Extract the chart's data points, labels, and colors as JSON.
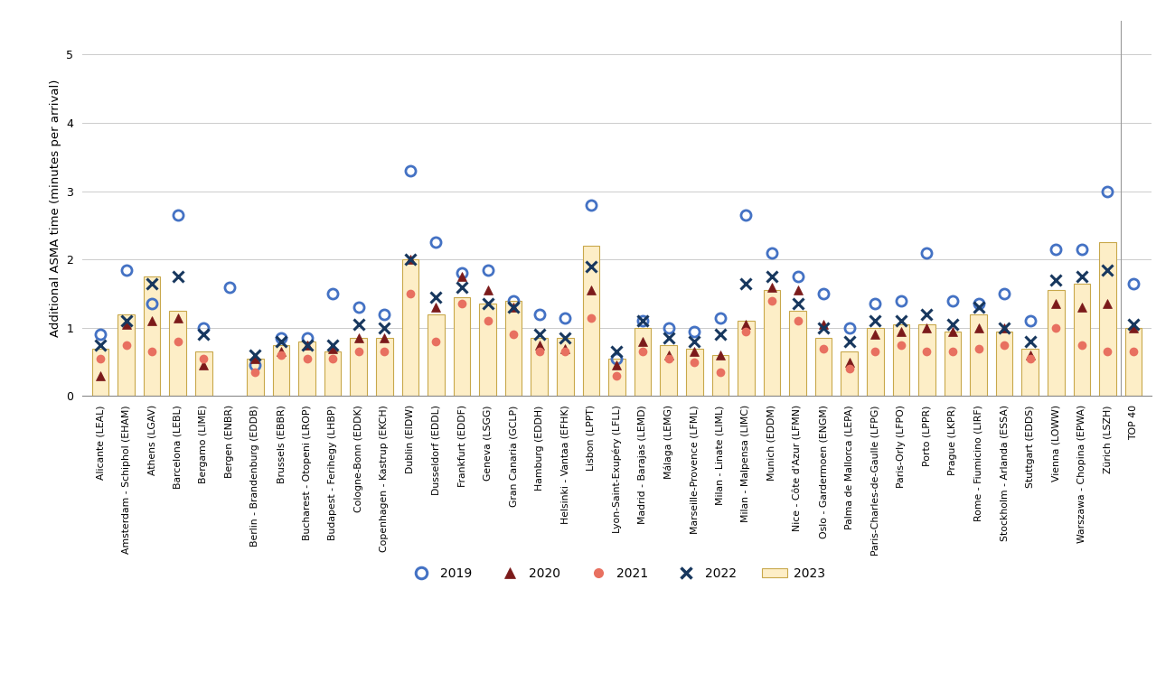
{
  "airports": [
    "Alicante (LEAL)",
    "Amsterdam - Schiphol (EHAM)",
    "Athens (LGAV)",
    "Barcelona (LEBL)",
    "Bergamo (LIME)",
    "Bergen (ENBR)",
    "Berlin - Brandenburg (EDDB)",
    "Brussels (EBBR)",
    "Bucharest - Otopeni (LROP)",
    "Budapest - Ferihegy (LHBP)",
    "Cologne-Bonn (EDDK)",
    "Copenhagen - Kastrup (EKCH)",
    "Dublin (EIDW)",
    "Dusseldorf (EDDL)",
    "Frankfurt (EDDF)",
    "Geneva (LSGG)",
    "Gran Canaria (GCLP)",
    "Hamburg (EDDH)",
    "Helsinki - Vantaa (EFHK)",
    "Lisbon (LPPT)",
    "Lyon-Saint-Exupéry (LFLL)",
    "Madrid - Barajas (LEMD)",
    "Málaga (LEMG)",
    "Marseille-Provence (LFML)",
    "Milan - Linate (LIML)",
    "Milan - Malpensa (LIMC)",
    "Munich (EDDM)",
    "Nice - Côte d'Azur (LFMN)",
    "Oslo - Gardermoen (ENGM)",
    "Palma de Mallorca (LEPA)",
    "Paris-Charles-de-Gaulle (LFPG)",
    "Paris-Orly (LFPO)",
    "Porto (LPPR)",
    "Prague (LKPR)",
    "Rome - Fiumicino (LIRF)",
    "Stockholm - Arlanda (ESSA)",
    "Stuttgart (EDDS)",
    "Vienna (LOWW)",
    "Warszawa - Chopina (EPWA)",
    "Zürich (LSZH)",
    "TOP 40"
  ],
  "y2019": [
    0.9,
    1.85,
    1.35,
    2.65,
    1.0,
    1.6,
    0.45,
    0.85,
    0.85,
    1.5,
    1.3,
    1.2,
    3.3,
    2.25,
    1.8,
    1.85,
    1.4,
    1.2,
    1.15,
    2.8,
    0.55,
    1.1,
    1.0,
    0.95,
    1.15,
    2.65,
    2.1,
    1.75,
    1.5,
    1.0,
    1.35,
    1.4,
    2.1,
    1.4,
    1.35,
    1.5,
    1.1,
    2.15,
    2.15,
    3.0,
    1.65
  ],
  "y2020": [
    0.3,
    1.05,
    1.1,
    1.15,
    0.45,
    null,
    0.55,
    0.65,
    0.75,
    0.7,
    0.85,
    0.85,
    2.0,
    1.3,
    1.75,
    1.55,
    1.3,
    0.75,
    0.7,
    1.55,
    0.45,
    0.8,
    0.6,
    0.65,
    0.6,
    1.05,
    1.6,
    1.55,
    1.05,
    0.5,
    0.9,
    0.95,
    1.0,
    0.95,
    1.0,
    1.0,
    0.6,
    1.35,
    1.3,
    1.35,
    1.0
  ],
  "y2021": [
    0.55,
    0.75,
    0.65,
    0.8,
    0.55,
    null,
    0.35,
    0.6,
    0.55,
    0.55,
    0.65,
    0.65,
    1.5,
    0.8,
    1.35,
    1.1,
    0.9,
    0.65,
    0.65,
    1.15,
    0.3,
    0.65,
    0.55,
    0.5,
    0.35,
    0.95,
    1.4,
    1.1,
    0.7,
    0.4,
    0.65,
    0.75,
    0.65,
    0.65,
    0.7,
    0.75,
    0.55,
    1.0,
    0.75,
    0.65,
    0.65
  ],
  "y2022": [
    0.75,
    1.1,
    1.65,
    1.75,
    0.9,
    null,
    0.6,
    0.8,
    0.75,
    0.75,
    1.05,
    1.0,
    2.0,
    1.45,
    1.6,
    1.35,
    1.3,
    0.9,
    0.85,
    1.9,
    0.65,
    1.1,
    0.85,
    0.8,
    0.9,
    1.65,
    1.75,
    1.35,
    1.0,
    0.8,
    1.1,
    1.1,
    1.2,
    1.05,
    1.3,
    1.0,
    0.8,
    1.7,
    1.75,
    1.85,
    1.05
  ],
  "y2023": [
    0.7,
    1.2,
    1.75,
    1.25,
    0.65,
    null,
    0.55,
    0.75,
    0.8,
    0.65,
    0.85,
    0.85,
    2.0,
    1.2,
    1.45,
    1.35,
    1.4,
    0.85,
    0.85,
    2.2,
    0.55,
    1.0,
    0.75,
    0.7,
    0.6,
    1.1,
    1.55,
    1.25,
    0.85,
    0.65,
    1.0,
    1.05,
    1.05,
    0.95,
    1.2,
    0.95,
    0.7,
    1.55,
    1.65,
    2.25,
    1.0
  ],
  "color_2019": "#4472C4",
  "color_2020": "#7B1A1A",
  "color_2021": "#E87060",
  "color_2022": "#17375E",
  "color_2023_face": "#FDEEC7",
  "color_2023_edge": "#C8A84B",
  "ylabel": "Additional ASMA time (minutes per arrival)",
  "ylim": [
    0,
    5.5
  ],
  "yticks": [
    0,
    1,
    2,
    3,
    4,
    5
  ],
  "grid_color": "#CCCCCC",
  "separator_color": "#999999"
}
